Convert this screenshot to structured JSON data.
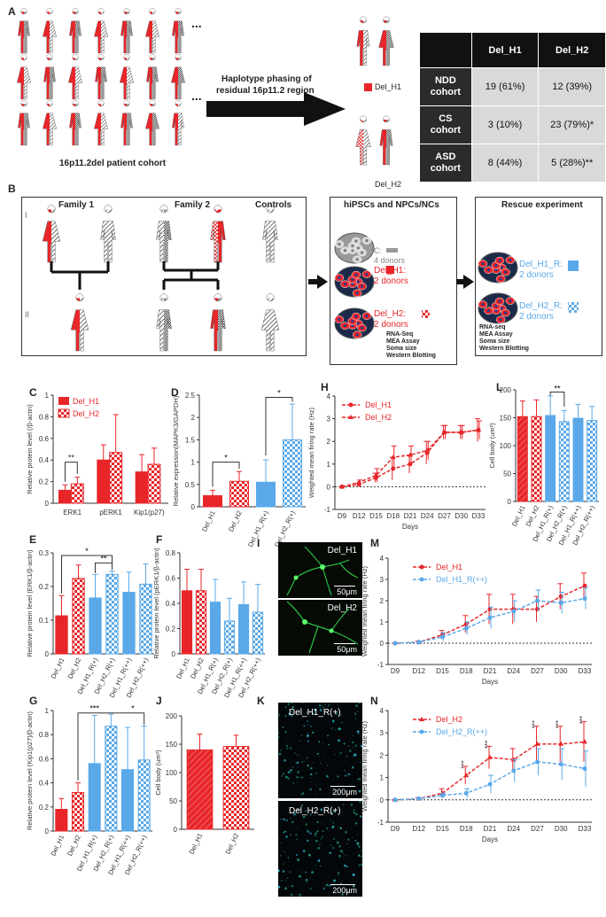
{
  "panels": {
    "A": "A",
    "B": "B",
    "C": "C",
    "D": "D",
    "E": "E",
    "F": "F",
    "G": "G",
    "H": "H",
    "I": "I",
    "J": "J",
    "K": "K",
    "L": "L",
    "M": "M",
    "N": "N"
  },
  "panelA": {
    "ellipsis": "...",
    "cohort_label": "16p11.2del patient cohort",
    "arrow_text_1": "Haplotype phasing of",
    "arrow_text_2": "residual 16p11.2 region",
    "legend_h1": "Del_H1",
    "legend_h2": "Del_H2",
    "table": {
      "headers": [
        "",
        "Del_H1",
        "Del_H2"
      ],
      "rows": [
        {
          "l1": "NDD",
          "l2": "cohort",
          "h1": "19 (61%)",
          "h2": "12 (39%)"
        },
        {
          "l1": "CS",
          "l2": "cohort",
          "h1": "3 (10%)",
          "h2": "23 (79%)*"
        },
        {
          "l1": "ASD",
          "l2": "cohort",
          "h1": "8 (44%)",
          "h2": "5 (28%)**"
        }
      ]
    }
  },
  "panelB": {
    "family1": "Family 1",
    "family2": "Family 2",
    "controls": "Controls",
    "gen1": "I",
    "gen2": "II",
    "hipsc_title": "hiPSCs and NPCs/NCs",
    "c_label": "C:",
    "c_donors": "4 donors",
    "h1_label": "Del_H1:",
    "h1_donors": "2 donors",
    "h2_label": "Del_H2:",
    "h2_donors": "2 donors",
    "assays": [
      "RNA-Seq",
      "MEA Assay",
      "Soma size",
      "Western Blotting"
    ],
    "rescue_title": "Rescue experiment",
    "r1_label": "Del_H1_R:",
    "r1_donors": "2 donors",
    "r2_label": "Del_H2_R:",
    "r2_donors": "2 donors",
    "rescue_assays": [
      "RNA-seq",
      "MEA Assay",
      "Soma size",
      "Western Blotting"
    ]
  },
  "colors": {
    "red": "#e8262a",
    "blue": "#5aa8e8",
    "dark": "#222222",
    "grey": "#bdbdbd"
  },
  "micro": {
    "I1": "Del_H1",
    "I2": "Del_H2",
    "I_scale": "50μm",
    "K1": "Del_H1_R(+)",
    "K2": "Del_H2_R(+)",
    "K_scale": "200μm"
  },
  "chart_data": [
    {
      "id": "C",
      "type": "bar",
      "ylabel": "Relative protein level (/β-actin)",
      "ylim": [
        0,
        1.0
      ],
      "yticks": [
        0.0,
        0.2,
        0.4,
        0.6,
        0.8,
        1.0
      ],
      "categories": [
        "ERK1",
        "pERK1",
        "Kip1(p27)"
      ],
      "series": [
        {
          "name": "Del_H1",
          "values": [
            0.12,
            0.4,
            0.29
          ],
          "err": [
            0.05,
            0.14,
            0.16
          ]
        },
        {
          "name": "Del_H2",
          "values": [
            0.18,
            0.47,
            0.36
          ],
          "err": [
            0.06,
            0.35,
            0.15
          ]
        }
      ],
      "annotations": [
        "**"
      ]
    },
    {
      "id": "D",
      "type": "bar",
      "ylabel": "Relative expression(MAPK3/GAPDH)",
      "ylim": [
        0,
        2.5
      ],
      "yticks": [
        0.0,
        0.5,
        1.0,
        1.5,
        2.0,
        2.5
      ],
      "categories": [
        "Del_H1",
        "Del_H2",
        "Del_H1_R(+)",
        "Del_H2_R(+)"
      ],
      "values": [
        0.25,
        0.57,
        0.55,
        1.5
      ],
      "err": [
        0.12,
        0.22,
        0.5,
        0.8
      ],
      "annotations": [
        "*",
        "*"
      ]
    },
    {
      "id": "E",
      "type": "bar",
      "ylabel": "Relative protein level (ERK1/β-actin)",
      "ylim": [
        0,
        0.3
      ],
      "yticks": [
        0.0,
        0.1,
        0.2,
        0.3
      ],
      "categories": [
        "Del_H1",
        "Del_H2",
        "Del_H1_R(+)",
        "Del_H2_R(+)",
        "Del_H1_R(++)",
        "Del_H2_R(++)"
      ],
      "values": [
        0.113,
        0.224,
        0.166,
        0.236,
        0.183,
        0.207
      ],
      "err": [
        0.06,
        0.04,
        0.07,
        0.01,
        0.06,
        0.06
      ],
      "annotations": [
        "*",
        "**"
      ]
    },
    {
      "id": "F",
      "type": "bar",
      "ylabel": "Relative protein level (pERK1/β-actin)",
      "ylim": [
        0,
        0.8
      ],
      "yticks": [
        0.0,
        0.2,
        0.4,
        0.6,
        0.8
      ],
      "categories": [
        "Del_H1",
        "Del_H2",
        "Del_H1_R(+)",
        "Del_H2_R(+)",
        "Del_H1_R(++)",
        "Del_H2_R(++)"
      ],
      "values": [
        0.5,
        0.5,
        0.41,
        0.26,
        0.39,
        0.33
      ],
      "err": [
        0.17,
        0.17,
        0.18,
        0.18,
        0.18,
        0.22
      ]
    },
    {
      "id": "G",
      "type": "bar",
      "ylabel": "Relative protein level (Kip1(p27)/β-actin)",
      "ylim": [
        0,
        1.0
      ],
      "yticks": [
        0.0,
        0.2,
        0.4,
        0.6,
        0.8,
        1.0
      ],
      "categories": [
        "Del_H1",
        "Del_H2",
        "Del_H1_R(+)",
        "Del_H2_R(+)",
        "Del_H1_R(++)",
        "Del_H2_R(++)"
      ],
      "values": [
        0.18,
        0.32,
        0.56,
        0.87,
        0.51,
        0.59
      ],
      "err": [
        0.09,
        0.08,
        0.4,
        0.1,
        0.35,
        0.28
      ],
      "annotations": [
        "***",
        "*"
      ]
    },
    {
      "id": "J",
      "type": "bar",
      "ylabel": "Cell body (um²)",
      "ylim": [
        0,
        200
      ],
      "yticks": [
        0,
        50,
        100,
        150,
        200
      ],
      "categories": [
        "Del_H1",
        "Del_H2"
      ],
      "values": [
        140,
        146
      ],
      "err": [
        28,
        20
      ]
    },
    {
      "id": "L",
      "type": "bar",
      "ylabel": "Cell body (um²)",
      "ylim": [
        0,
        200
      ],
      "yticks": [
        0,
        50,
        100,
        150,
        200
      ],
      "categories": [
        "Del_H1",
        "Del_H2",
        "Del_H1_R(+)",
        "Del_H2_R(+)",
        "Del_H1_R(++)",
        "Del_H2_R(++)"
      ],
      "values": [
        152,
        152,
        154,
        143,
        149,
        145
      ],
      "err": [
        28,
        30,
        35,
        20,
        25,
        25
      ],
      "annotations": [
        "**"
      ]
    },
    {
      "id": "H",
      "type": "line",
      "ylabel": "Weighted mean firing rate (Hz)",
      "xlabel": "Days",
      "ylim": [
        -1,
        4
      ],
      "yticks": [
        -1,
        0,
        1,
        2,
        3,
        4
      ],
      "x": [
        "D9",
        "D12",
        "D15",
        "D18",
        "D21",
        "D24",
        "D27",
        "D30",
        "D33"
      ],
      "series": [
        {
          "name": "Del_H1",
          "values": [
            0,
            0.1,
            0.4,
            0.8,
            1.0,
            1.5,
            2.4,
            2.4,
            2.5
          ],
          "err": [
            0,
            0.05,
            0.2,
            0.5,
            0.4,
            0.5,
            0.3,
            0.3,
            0.5
          ]
        },
        {
          "name": "Del_H2",
          "values": [
            0,
            0.2,
            0.5,
            1.3,
            1.4,
            1.6,
            2.4,
            2.4,
            2.5
          ],
          "err": [
            0,
            0.1,
            0.3,
            0.5,
            0.4,
            0.4,
            0.3,
            0.3,
            0.4
          ]
        }
      ]
    },
    {
      "id": "M",
      "type": "line",
      "ylabel": "Weighted mean firing rate (Hz)",
      "xlabel": "Days",
      "ylim": [
        -1,
        4
      ],
      "yticks": [
        -1,
        0,
        1,
        2,
        3,
        4
      ],
      "x": [
        "D9",
        "D12",
        "D15",
        "D18",
        "D21",
        "D24",
        "D27",
        "D30",
        "D33"
      ],
      "series": [
        {
          "name": "Del_H1",
          "values": [
            0,
            0.05,
            0.4,
            0.9,
            1.6,
            1.6,
            1.6,
            2.2,
            2.7
          ],
          "err": [
            0,
            0.05,
            0.2,
            0.4,
            0.7,
            0.7,
            0.6,
            0.6,
            0.6
          ]
        },
        {
          "name": "Del_H1_R(++)",
          "values": [
            0,
            0.05,
            0.3,
            0.7,
            1.2,
            1.5,
            2.0,
            1.9,
            2.1
          ],
          "err": [
            0,
            0.05,
            0.2,
            0.3,
            0.5,
            0.5,
            0.5,
            0.5,
            0.5
          ]
        }
      ]
    },
    {
      "id": "N",
      "type": "line",
      "ylabel": "Weighted mean firing rate (Hz)",
      "xlabel": "Days",
      "ylim": [
        -1,
        4
      ],
      "yticks": [
        -1,
        0,
        1,
        2,
        3,
        4
      ],
      "x": [
        "D9",
        "D12",
        "D15",
        "D18",
        "D21",
        "D24",
        "D27",
        "D30",
        "D33"
      ],
      "series": [
        {
          "name": "Del_H2",
          "values": [
            0,
            0.05,
            0.3,
            1.1,
            1.9,
            1.8,
            2.5,
            2.5,
            2.6
          ],
          "err": [
            0,
            0.05,
            0.2,
            0.4,
            0.5,
            0.5,
            0.8,
            0.8,
            0.9
          ]
        },
        {
          "name": "Del_H2_R(++)",
          "values": [
            0,
            0.05,
            0.2,
            0.3,
            0.7,
            1.3,
            1.7,
            1.6,
            1.4
          ],
          "err": [
            0,
            0.05,
            0.1,
            0.2,
            0.4,
            0.5,
            0.6,
            0.7,
            0.8
          ]
        }
      ],
      "annotations": [
        "***",
        "***",
        "***",
        "***",
        "***"
      ]
    }
  ]
}
